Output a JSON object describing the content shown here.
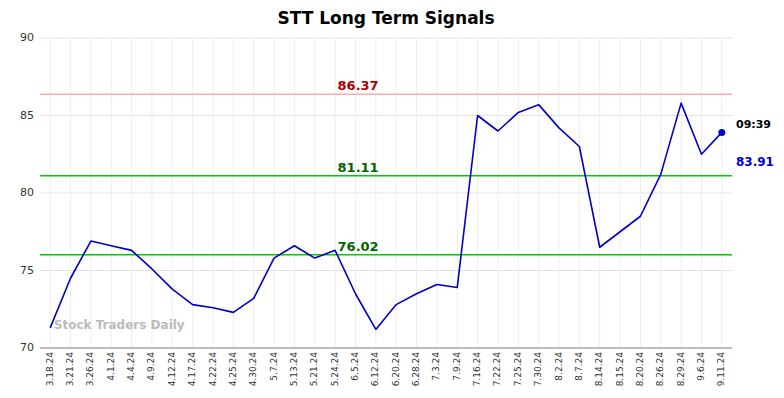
{
  "chart_data": {
    "type": "line",
    "title": "STT Long Term Signals",
    "categories": [
      "3.18.24",
      "3.21.24",
      "3.26.24",
      "4.1.24",
      "4.4.24",
      "4.9.24",
      "4.12.24",
      "4.17.24",
      "4.22.24",
      "4.25.24",
      "4.30.24",
      "5.7.24",
      "5.13.24",
      "5.21.24",
      "5.24.24",
      "6.5.24",
      "6.12.24",
      "6.20.24",
      "6.28.24",
      "7.3.24",
      "7.9.24",
      "7.16.24",
      "7.22.24",
      "7.25.24",
      "7.30.24",
      "8.2.24",
      "8.7.24",
      "8.14.24",
      "8.15.24",
      "8.20.24",
      "8.26.24",
      "8.29.24",
      "9.6.24",
      "9.11.24"
    ],
    "values": [
      71.3,
      74.5,
      76.9,
      76.6,
      76.3,
      75.1,
      73.8,
      72.8,
      72.6,
      72.3,
      73.2,
      75.8,
      76.6,
      75.8,
      76.3,
      73.5,
      71.2,
      72.8,
      73.5,
      74.1,
      73.9,
      85.0,
      84.0,
      85.2,
      85.7,
      84.2,
      83.0,
      76.5,
      77.5,
      78.5,
      81.2,
      85.8,
      82.5,
      83.91
    ],
    "color": "#0000cc",
    "hlines": [
      {
        "value": 86.37,
        "label": "86.37",
        "color": "#ffaaaa",
        "label_color": "#aa0000"
      },
      {
        "value": 81.11,
        "label": "81.11",
        "color": "#00cc00",
        "label_color": "#006600"
      },
      {
        "value": 76.02,
        "label": "76.02",
        "color": "#00cc00",
        "label_color": "#006600"
      }
    ],
    "last_point": {
      "value": 83.91,
      "label": "83.91",
      "time": "09:39",
      "color": "#0000cc"
    },
    "watermark": "Stock Traders Daily",
    "ylim": [
      70,
      90
    ],
    "yticks": [
      70,
      75,
      80,
      85,
      90
    ],
    "grid": true
  }
}
